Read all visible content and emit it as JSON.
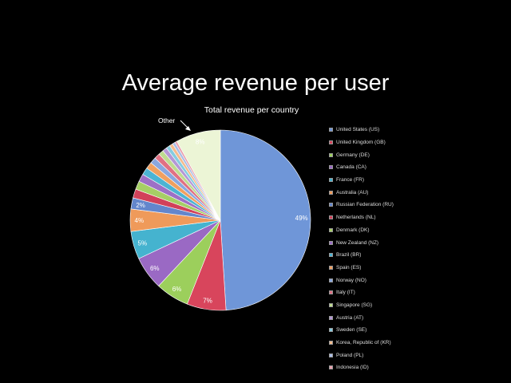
{
  "title": "Average revenue per user",
  "chart_data": {
    "type": "pie",
    "title": "Total revenue per country",
    "annotation": "Other",
    "legend_position": "right",
    "slices": [
      {
        "name": "United States (US)",
        "value": 49,
        "label": "49%",
        "color": "#6f96d8"
      },
      {
        "name": "United Kingdom (GB)",
        "value": 7,
        "label": "7%",
        "color": "#d8455c"
      },
      {
        "name": "Germany (DE)",
        "value": 6,
        "label": "6%",
        "color": "#9ccf5c"
      },
      {
        "name": "Canada (CA)",
        "value": 6,
        "label": "6%",
        "color": "#9a69c4"
      },
      {
        "name": "France (FR)",
        "value": 5,
        "label": "5%",
        "color": "#45b3cf"
      },
      {
        "name": "Australia (AU)",
        "value": 4,
        "label": "4%",
        "color": "#ef9a5a"
      },
      {
        "name": "Russian Federation (RU)",
        "value": 2,
        "label": "2%",
        "color": "#6386cc"
      },
      {
        "name": "Netherlands (NL)",
        "value": 1.6,
        "label": "",
        "color": "#d2415a"
      },
      {
        "name": "Denmark (DK)",
        "value": 1.5,
        "label": "",
        "color": "#a6cf65"
      },
      {
        "name": "New Zealand (NZ)",
        "value": 1.4,
        "label": "",
        "color": "#9d70c6"
      },
      {
        "name": "Brazil (BR)",
        "value": 1.3,
        "label": "",
        "color": "#4cb4d3"
      },
      {
        "name": "Spain (ES)",
        "value": 1.2,
        "label": "",
        "color": "#f0a060"
      },
      {
        "name": "Norway (NO)",
        "value": 1.1,
        "label": "",
        "color": "#8aa7df"
      },
      {
        "name": "Italy (IT)",
        "value": 1.0,
        "label": "",
        "color": "#e07083"
      },
      {
        "name": "Singapore (SG)",
        "value": 0.9,
        "label": "",
        "color": "#bedb8f"
      },
      {
        "name": "Austria (AT)",
        "value": 0.8,
        "label": "",
        "color": "#b498d6"
      },
      {
        "name": "Sweden (SE)",
        "value": 0.7,
        "label": "",
        "color": "#85cce0"
      },
      {
        "name": "Korea, Republic of (KR)",
        "value": 0.6,
        "label": "",
        "color": "#f4bb8d"
      },
      {
        "name": "Poland (PL)",
        "value": 0.5,
        "label": "",
        "color": "#a9bde6"
      },
      {
        "name": "Indonesia (ID)",
        "value": 0.4,
        "label": "",
        "color": "#e9a0ad"
      },
      {
        "name": "Other",
        "value": 8,
        "label": "8%",
        "color": "#ecf5d6"
      }
    ]
  }
}
